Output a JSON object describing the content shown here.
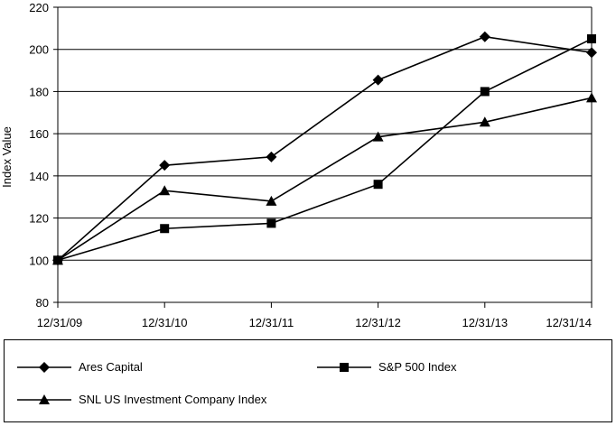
{
  "chart_data": {
    "type": "line",
    "title": "",
    "xlabel": "",
    "ylabel": "Index Value",
    "ylim": [
      80,
      220
    ],
    "yticks": [
      80,
      100,
      120,
      140,
      160,
      180,
      200,
      220
    ],
    "categories": [
      "12/31/09",
      "12/31/10",
      "12/31/11",
      "12/31/12",
      "12/31/13",
      "12/31/14"
    ],
    "grid": "horizontal",
    "legend_position": "bottom",
    "series": [
      {
        "name": "Ares Capital",
        "marker": "diamond",
        "color": "#000000",
        "values": [
          100,
          145,
          149,
          185.5,
          206,
          198.5
        ]
      },
      {
        "name": "S&P 500 Index",
        "marker": "square",
        "color": "#000000",
        "values": [
          100,
          115,
          117.5,
          136,
          180,
          205
        ]
      },
      {
        "name": "SNL US Investment Company Index",
        "marker": "triangle",
        "color": "#000000",
        "values": [
          100,
          133,
          128,
          158.5,
          165.5,
          177
        ]
      }
    ]
  }
}
